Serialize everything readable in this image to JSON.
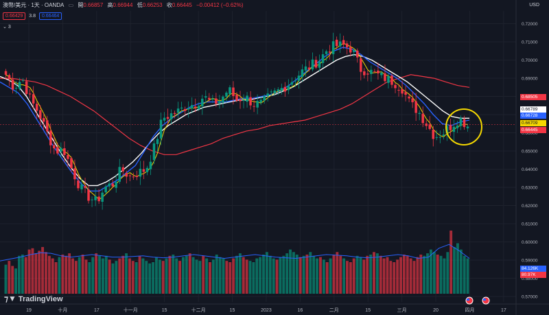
{
  "header": {
    "symbol": "澳幣/美元 · 1天 · OANDA",
    "ohlc": [
      {
        "label": "開",
        "value": "0.66857"
      },
      {
        "label": "高",
        "value": "0.66944"
      },
      {
        "label": "低",
        "value": "0.66253"
      },
      {
        "label": "收",
        "value": "0.66445"
      }
    ],
    "change": "−0.00412 (−0.62%)",
    "sell_price": "0.66429",
    "spread": "3.8",
    "buy_price": "0.66464",
    "collapsed_count": "3",
    "currency": "USD"
  },
  "logo": "TradingView",
  "price_labels": [
    {
      "value": "0.68505",
      "color": "#f23645",
      "text_color": "#ffffff"
    },
    {
      "value": "0.66789",
      "color": "#ffffff",
      "text_color": "#131722"
    },
    {
      "value": "0.66728",
      "color": "#2962ff",
      "text_color": "#ffffff"
    },
    {
      "value": "0.66709",
      "color": "#f5d800",
      "text_color": "#131722"
    },
    {
      "value": "0.66445",
      "color": "#f23645",
      "text_color": "#ffffff"
    },
    {
      "value": "84.126K",
      "color": "#2962ff",
      "text_color": "#ffffff"
    },
    {
      "value": "80.97K",
      "color": "#f23645",
      "text_color": "#ffffff"
    }
  ],
  "chart_data": {
    "type": "candlestick",
    "y_ticks": [
      "0.72000",
      "0.71000",
      "0.70000",
      "0.69000",
      "0.68000",
      "0.67000",
      "0.66000",
      "0.65000",
      "0.64000",
      "0.63000",
      "0.62000",
      "0.61000",
      "0.60000",
      "0.59000",
      "0.58000",
      "0.57000"
    ],
    "ylim": [
      0.567,
      0.727
    ],
    "x_ticks": [
      "19",
      "十月",
      "17",
      "十一月",
      "15",
      "十二月",
      "15",
      "2023",
      "16",
      "二月",
      "15",
      "三月",
      "20",
      "四月",
      "17"
    ],
    "main_close_path": [
      0.692,
      0.685,
      0.69,
      0.678,
      0.671,
      0.66,
      0.65,
      0.651,
      0.64,
      0.63,
      0.625,
      0.622,
      0.63,
      0.632,
      0.64,
      0.636,
      0.638,
      0.64,
      0.652,
      0.668,
      0.67,
      0.672,
      0.675,
      0.676,
      0.68,
      0.676,
      0.678,
      0.684,
      0.678,
      0.68,
      0.676,
      0.676,
      0.68,
      0.683,
      0.686,
      0.69,
      0.694,
      0.697,
      0.7,
      0.706,
      0.708,
      0.708,
      0.706,
      0.695,
      0.694,
      0.692,
      0.69,
      0.688,
      0.685,
      0.676,
      0.672,
      0.665,
      0.658,
      0.66,
      0.664,
      0.668,
      0.664
    ],
    "ma_white": [
      0.691,
      0.689,
      0.686,
      0.68,
      0.672,
      0.664,
      0.656,
      0.648,
      0.641,
      0.635,
      0.631,
      0.631,
      0.633,
      0.636,
      0.64,
      0.644,
      0.649,
      0.655,
      0.66,
      0.664,
      0.667,
      0.67,
      0.672,
      0.674,
      0.675,
      0.676,
      0.677,
      0.678,
      0.678,
      0.679,
      0.68,
      0.681,
      0.683,
      0.685,
      0.688,
      0.691,
      0.694,
      0.697,
      0.7,
      0.702,
      0.703,
      0.702,
      0.7,
      0.697,
      0.694,
      0.691,
      0.688,
      0.684,
      0.68,
      0.676,
      0.672,
      0.669,
      0.668,
      0.668
    ],
    "ma_blue": [
      0.688,
      0.685,
      0.682,
      0.676,
      0.668,
      0.66,
      0.652,
      0.645,
      0.638,
      0.632,
      0.628,
      0.628,
      0.631,
      0.634,
      0.638,
      0.642,
      0.65,
      0.658,
      0.664,
      0.668,
      0.671,
      0.674,
      0.676,
      0.677,
      0.677,
      0.677,
      0.678,
      0.679,
      0.679,
      0.68,
      0.681,
      0.683,
      0.686,
      0.69,
      0.694,
      0.698,
      0.702,
      0.705,
      0.707,
      0.706,
      0.703,
      0.699,
      0.696,
      0.693,
      0.69,
      0.686,
      0.681,
      0.676,
      0.67,
      0.665,
      0.664,
      0.666,
      0.667
    ],
    "ma_red": [
      0.69,
      0.69,
      0.689,
      0.688,
      0.686,
      0.683,
      0.68,
      0.676,
      0.672,
      0.667,
      0.662,
      0.657,
      0.653,
      0.65,
      0.648,
      0.648,
      0.65,
      0.652,
      0.654,
      0.657,
      0.659,
      0.661,
      0.662,
      0.664,
      0.665,
      0.666,
      0.667,
      0.669,
      0.671,
      0.673,
      0.676,
      0.68,
      0.684,
      0.688,
      0.69,
      0.692,
      0.691,
      0.69,
      0.688,
      0.686,
      0.685
    ],
    "volume_ratio": [
      0.46,
      0.52,
      0.44,
      0.4,
      0.6,
      0.62,
      0.58,
      0.7,
      0.72,
      0.64,
      0.68,
      0.74,
      0.66,
      0.6,
      0.56,
      0.5,
      0.58,
      0.62,
      0.6,
      0.64,
      0.56,
      0.52,
      0.58,
      0.62,
      0.54,
      0.5,
      0.58,
      0.64,
      0.6,
      0.56,
      0.6,
      0.54,
      0.48,
      0.52,
      0.56,
      0.6,
      0.64,
      0.56,
      0.52,
      0.5,
      0.6,
      0.56,
      0.52,
      0.48,
      0.5,
      0.58,
      0.54,
      0.52,
      0.56,
      0.6,
      0.62,
      0.56,
      0.52,
      0.58,
      0.6,
      0.64,
      0.58,
      0.54,
      0.52,
      0.6,
      0.56,
      0.5,
      0.54,
      0.62,
      0.58,
      0.56,
      0.52,
      0.5,
      0.56,
      0.6,
      0.64,
      0.58,
      0.54,
      0.52,
      0.5,
      0.56,
      0.58,
      0.62,
      0.66,
      0.6,
      0.56,
      0.54,
      0.58,
      0.6,
      0.64,
      0.7,
      0.66,
      0.62,
      0.58,
      0.6,
      0.62,
      0.66,
      0.6,
      0.56,
      0.58,
      0.54,
      0.5,
      0.56,
      0.62,
      0.66,
      0.6,
      0.56,
      0.52,
      0.5,
      0.56,
      0.6,
      0.58,
      0.54,
      0.6,
      0.62,
      0.66,
      0.64,
      0.6,
      0.56,
      0.58,
      0.52,
      0.5,
      0.54,
      0.58,
      0.62,
      0.6,
      0.56,
      0.52,
      0.58,
      0.62,
      0.6,
      0.64,
      0.7,
      0.66,
      0.62,
      0.6,
      0.56,
      0.66,
      1.0,
      0.74,
      0.8,
      0.7,
      0.6,
      0.56
    ],
    "volume_ma": [
      0.52,
      0.55,
      0.58,
      0.62,
      0.65,
      0.64,
      0.6,
      0.58,
      0.6,
      0.62,
      0.6,
      0.58,
      0.58,
      0.59,
      0.6,
      0.58,
      0.57,
      0.58,
      0.6,
      0.62,
      0.6,
      0.58,
      0.56,
      0.58,
      0.6,
      0.62,
      0.6,
      0.58,
      0.57,
      0.56,
      0.58,
      0.6,
      0.62,
      0.61,
      0.6,
      0.58,
      0.57,
      0.58,
      0.6,
      0.62,
      0.6,
      0.56,
      0.58,
      0.72,
      0.78,
      0.68,
      0.56
    ],
    "annotation": "yellow circle highlighting latest candles"
  }
}
